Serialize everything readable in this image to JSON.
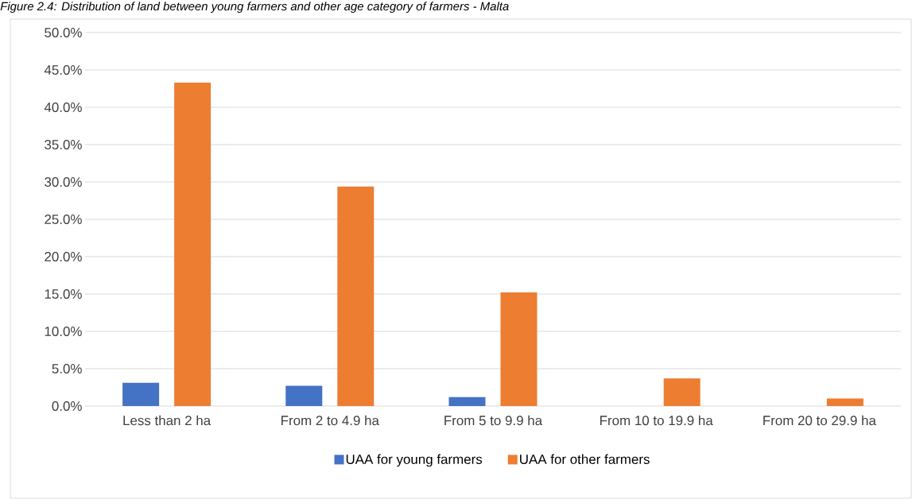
{
  "chart_data": {
    "type": "bar",
    "title": "Figure 2.4: Distribution of land between young farmers and other age category of farmers - Malta",
    "categories": [
      "Less than 2 ha",
      "From 2 to 4.9 ha",
      "From 5 to 9.9 ha",
      "From 10 to 19.9 ha",
      "From 20 to 29.9 ha"
    ],
    "series": [
      {
        "name": "UAA for young farmers",
        "color": "#4472c4",
        "values": [
          3.1,
          2.7,
          1.2,
          0,
          0
        ]
      },
      {
        "name": "UAA for other farmers",
        "color": "#ed7d31",
        "values": [
          43.3,
          29.4,
          15.2,
          3.7,
          1.0
        ]
      }
    ],
    "ylim": [
      0,
      50
    ],
    "yticks": [
      {
        "value": 0,
        "label": "0.0%"
      },
      {
        "value": 5,
        "label": "5.0%"
      },
      {
        "value": 10,
        "label": "10.0%"
      },
      {
        "value": 15,
        "label": "15.0%"
      },
      {
        "value": 20,
        "label": "20.0%"
      },
      {
        "value": 25,
        "label": "25.0%"
      },
      {
        "value": 30,
        "label": "30.0%"
      },
      {
        "value": 35,
        "label": "35.0%"
      },
      {
        "value": 40,
        "label": "40.0%"
      },
      {
        "value": 45,
        "label": "45.0%"
      },
      {
        "value": 50,
        "label": "50.0%"
      }
    ],
    "grid": true,
    "legend": "bottom"
  }
}
